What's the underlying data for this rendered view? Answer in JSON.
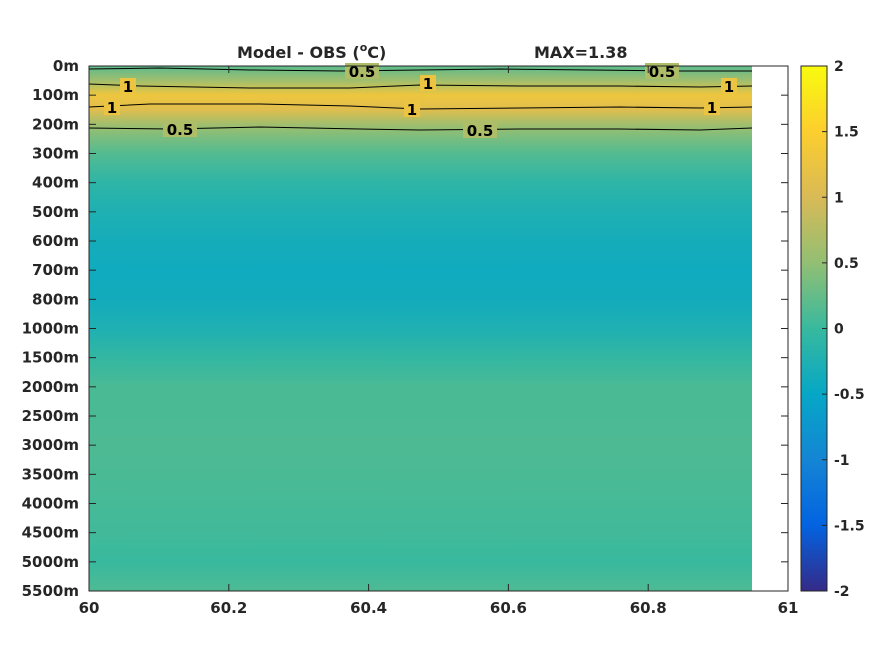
{
  "chart_data": {
    "type": "heatmap",
    "title": "Model - OBS (",
    "title_unit_sup": "o",
    "title_unit_tail": "C)",
    "max_label": "MAX=1.38",
    "xlim": [
      60,
      61
    ],
    "x_ticks": [
      "60",
      "60.2",
      "60.4",
      "60.6",
      "60.8",
      "61"
    ],
    "y_ticks": [
      "0m",
      "100m",
      "200m",
      "300m",
      "400m",
      "500m",
      "600m",
      "700m",
      "800m",
      "1000m",
      "1500m",
      "2000m",
      "2500m",
      "3000m",
      "3500m",
      "4000m",
      "4500m",
      "5000m",
      "5500m"
    ],
    "data_x_extent": [
      60,
      60.95
    ],
    "colorbar": {
      "range": [
        -2,
        2
      ],
      "ticks": [
        "2",
        "1.5",
        "1",
        "0.5",
        "0",
        "-0.5",
        "-1",
        "-1.5",
        "-2"
      ]
    },
    "profile": [
      {
        "depth": "0m",
        "value": 0.2
      },
      {
        "depth": "50m",
        "value": 0.6
      },
      {
        "depth": "100m",
        "value": 1.3
      },
      {
        "depth": "150m",
        "value": 1.1
      },
      {
        "depth": "200m",
        "value": 0.6
      },
      {
        "depth": "250m",
        "value": 0.35
      },
      {
        "depth": "300m",
        "value": 0.15
      },
      {
        "depth": "400m",
        "value": -0.1
      },
      {
        "depth": "500m",
        "value": -0.25
      },
      {
        "depth": "600m",
        "value": -0.35
      },
      {
        "depth": "700m",
        "value": -0.4
      },
      {
        "depth": "800m",
        "value": -0.38
      },
      {
        "depth": "1000m",
        "value": -0.25
      },
      {
        "depth": "1500m",
        "value": -0.05
      },
      {
        "depth": "2000m",
        "value": 0.1
      },
      {
        "depth": "2500m",
        "value": 0.1
      },
      {
        "depth": "3000m",
        "value": 0.12
      },
      {
        "depth": "3500m",
        "value": 0.1
      },
      {
        "depth": "4000m",
        "value": 0.08
      },
      {
        "depth": "4500m",
        "value": 0.05
      },
      {
        "depth": "5000m",
        "value": 0.0
      },
      {
        "depth": "5500m",
        "value": 0.12
      }
    ],
    "contours": [
      {
        "level": "0.5",
        "labels": [
          "0.5",
          "0.5"
        ]
      },
      {
        "level": "1",
        "labels": [
          "1",
          "1",
          "1"
        ]
      },
      {
        "level": "1",
        "labels": [
          "1",
          "1",
          "1"
        ]
      },
      {
        "level": "0.5",
        "labels": [
          "0.5",
          "0.5"
        ]
      }
    ]
  }
}
